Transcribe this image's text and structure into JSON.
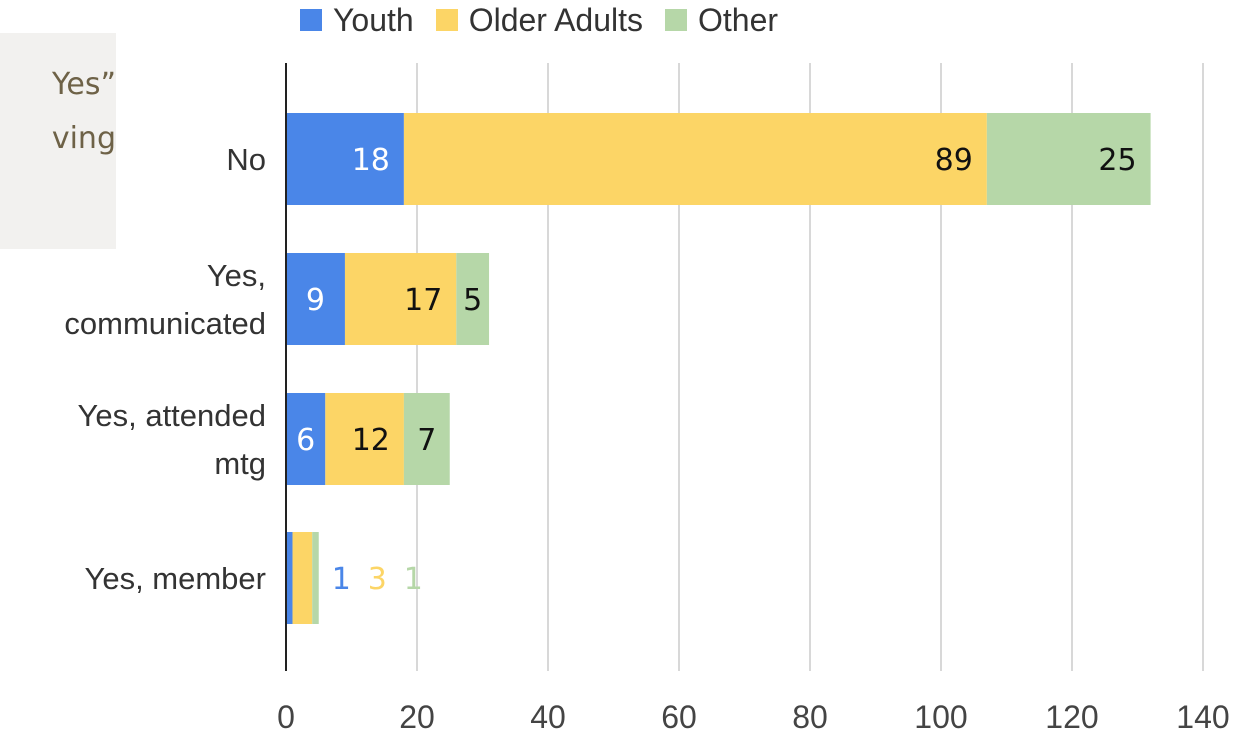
{
  "side_panel": {
    "lines": [
      "Yes”",
      "ving"
    ]
  },
  "legend": [
    {
      "label": "Youth",
      "color": "#4a86e8"
    },
    {
      "label": "Older Adults",
      "color": "#fcd566"
    },
    {
      "label": "Other",
      "color": "#b6d7a8"
    }
  ],
  "chart_data": {
    "type": "bar",
    "orientation": "horizontal",
    "stacked": true,
    "categories": [
      [
        "No"
      ],
      [
        "Yes,",
        "communicated"
      ],
      [
        "Yes, attended",
        "mtg"
      ],
      [
        "Yes, member"
      ]
    ],
    "series": [
      {
        "name": "Youth",
        "color": "#4a86e8",
        "label_color": "#ffffff",
        "values": [
          18,
          9,
          6,
          1
        ]
      },
      {
        "name": "Older Adults",
        "color": "#fcd566",
        "label_color": "#111111",
        "values": [
          89,
          17,
          12,
          3
        ]
      },
      {
        "name": "Other",
        "color": "#b6d7a8",
        "label_color": "#111111",
        "values": [
          25,
          5,
          7,
          1
        ]
      }
    ],
    "xlim": [
      0,
      140
    ],
    "xticks": [
      "0",
      "20",
      "40",
      "60",
      "80",
      "100",
      "120",
      "140"
    ],
    "grid": true,
    "legend_position": "top",
    "xlabel": "",
    "ylabel": ""
  }
}
